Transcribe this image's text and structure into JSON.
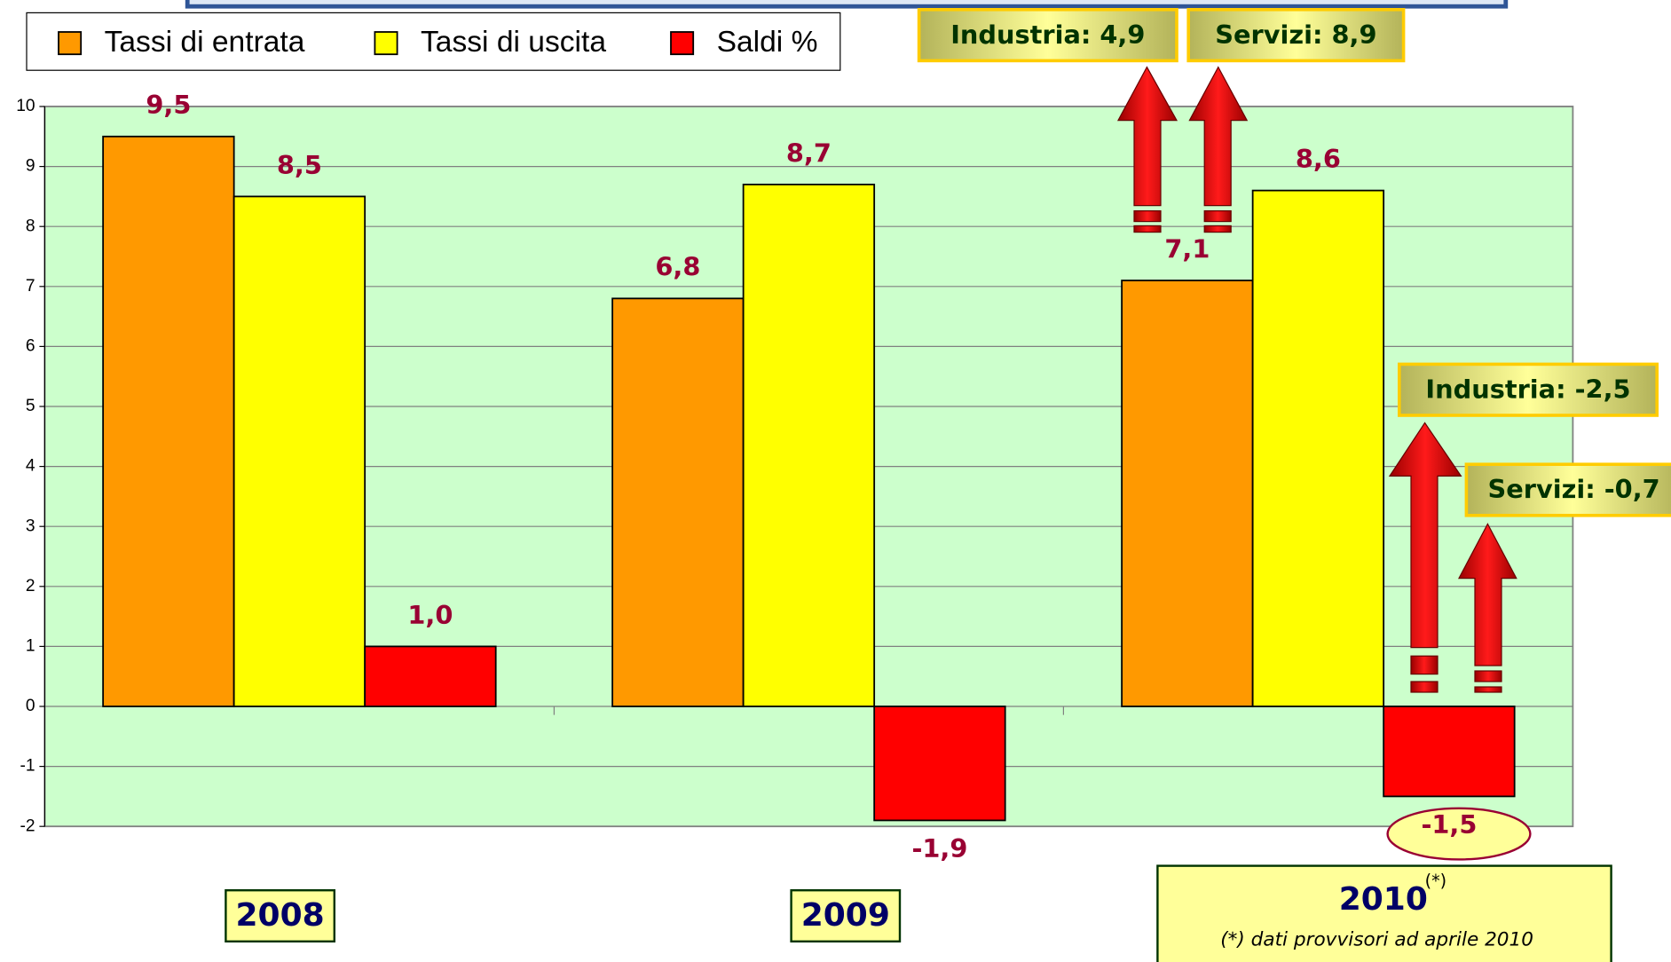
{
  "chart_data": {
    "type": "bar",
    "categories": [
      "2008",
      "2009",
      "2010"
    ],
    "series": [
      {
        "name": "Tassi di entrata",
        "color": "#ff9900",
        "values": [
          9.5,
          6.8,
          7.1
        ],
        "value_labels": [
          "9,5",
          "6,8",
          "7,1"
        ]
      },
      {
        "name": "Tassi di uscita",
        "color": "#ffff00",
        "values": [
          8.5,
          8.7,
          8.6
        ],
        "value_labels": [
          "8,5",
          "8,7",
          "8,6"
        ]
      },
      {
        "name": "Saldi %",
        "color": "#ff0000",
        "values": [
          1.0,
          -1.9,
          -1.5
        ],
        "value_labels": [
          "1,0",
          "-1,9",
          "-1,5"
        ]
      }
    ],
    "ylim": [
      -2,
      10
    ],
    "yticks": [
      -2,
      -1,
      0,
      1,
      2,
      3,
      4,
      5,
      6,
      7,
      8,
      9,
      10
    ],
    "grid": true,
    "annotations": [
      "Industria: 4,9",
      "Servizi: 8,9",
      "Industria: -2,5",
      "Servizi: -0,7"
    ],
    "footnote_marker": "(*)",
    "footnote": "(*) dati provvisori ad aprile 2010"
  }
}
